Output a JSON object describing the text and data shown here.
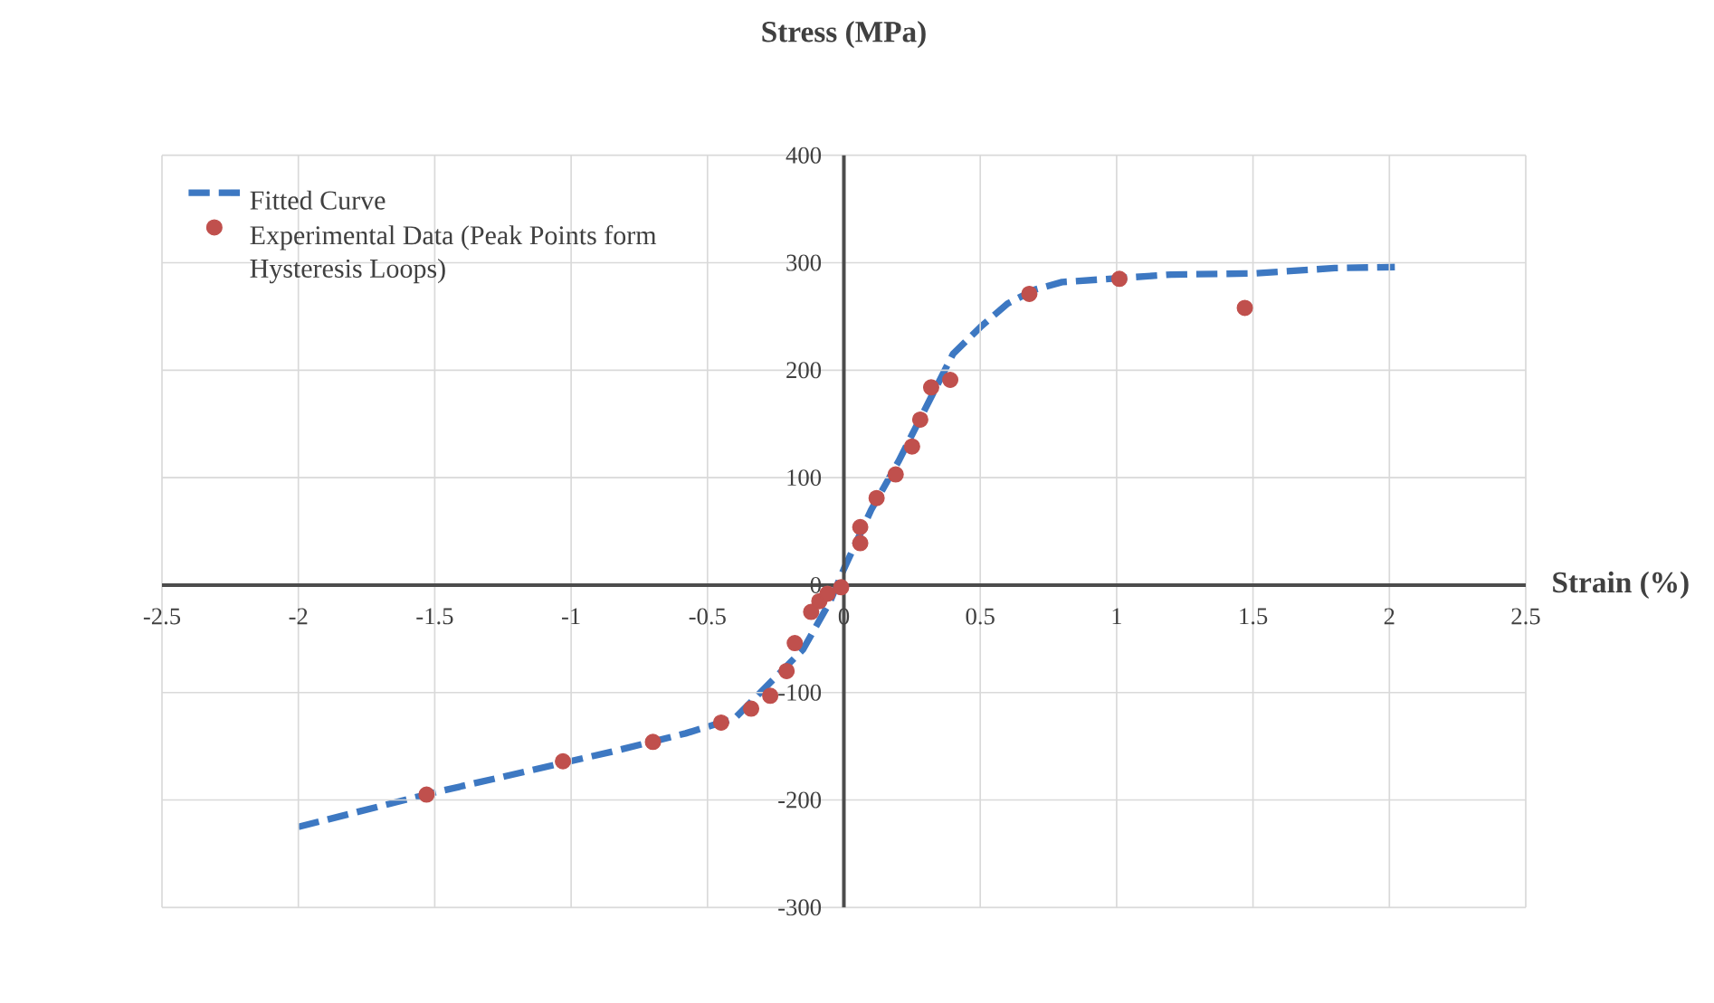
{
  "chart_data": {
    "type": "scatter",
    "xlabel": "Strain (%)",
    "ylabel": "Stress (MPa)",
    "xlim": [
      -2.5,
      2.5
    ],
    "xticks": [
      -2.5,
      -2,
      -1.5,
      -1,
      -0.5,
      0,
      0.5,
      1,
      1.5,
      2,
      2.5
    ],
    "ylim": [
      -300,
      400
    ],
    "yticks": [
      -300,
      -200,
      -100,
      0,
      100,
      200,
      300,
      400
    ],
    "grid": true,
    "legend": "top left",
    "series": [
      {
        "name": "Fitted Curve",
        "type": "line",
        "line_style": "dashed",
        "marker": "none",
        "color": "#3d78c2",
        "x": [
          -2,
          -1.5,
          -0.85,
          -0.58,
          -0.4,
          -0.15,
          -0.05,
          0,
          0.1,
          0.2,
          0.3,
          0.4,
          0.5,
          0.6,
          0.7,
          0.8,
          1.2,
          1.5,
          1.8,
          2.02
        ],
        "values": [
          -225,
          -193,
          -155,
          -138,
          -124,
          -60,
          -15,
          15,
          70,
          115,
          165,
          215,
          240,
          262,
          275,
          282,
          289,
          290,
          295,
          296
        ]
      },
      {
        "name": "Experimental Data (Peak Points form Hysteresis Loops)",
        "marker": "circle",
        "color": "#c0504d",
        "x": [
          -1.53,
          -1.03,
          -0.7,
          -0.45,
          -0.34,
          -0.27,
          -0.21,
          -0.18,
          -0.12,
          -0.09,
          -0.06,
          -0.01,
          0.06,
          0.06,
          0.12,
          0.19,
          0.25,
          0.28,
          0.32,
          0.39,
          0.68,
          1.01,
          1.47
        ],
        "values": [
          -195,
          -164,
          -146,
          -128,
          -115,
          -103,
          -80,
          -54,
          -25,
          -15,
          -8,
          -2,
          39,
          54,
          81,
          103,
          129,
          154,
          184,
          191,
          271,
          285,
          258
        ]
      }
    ]
  }
}
